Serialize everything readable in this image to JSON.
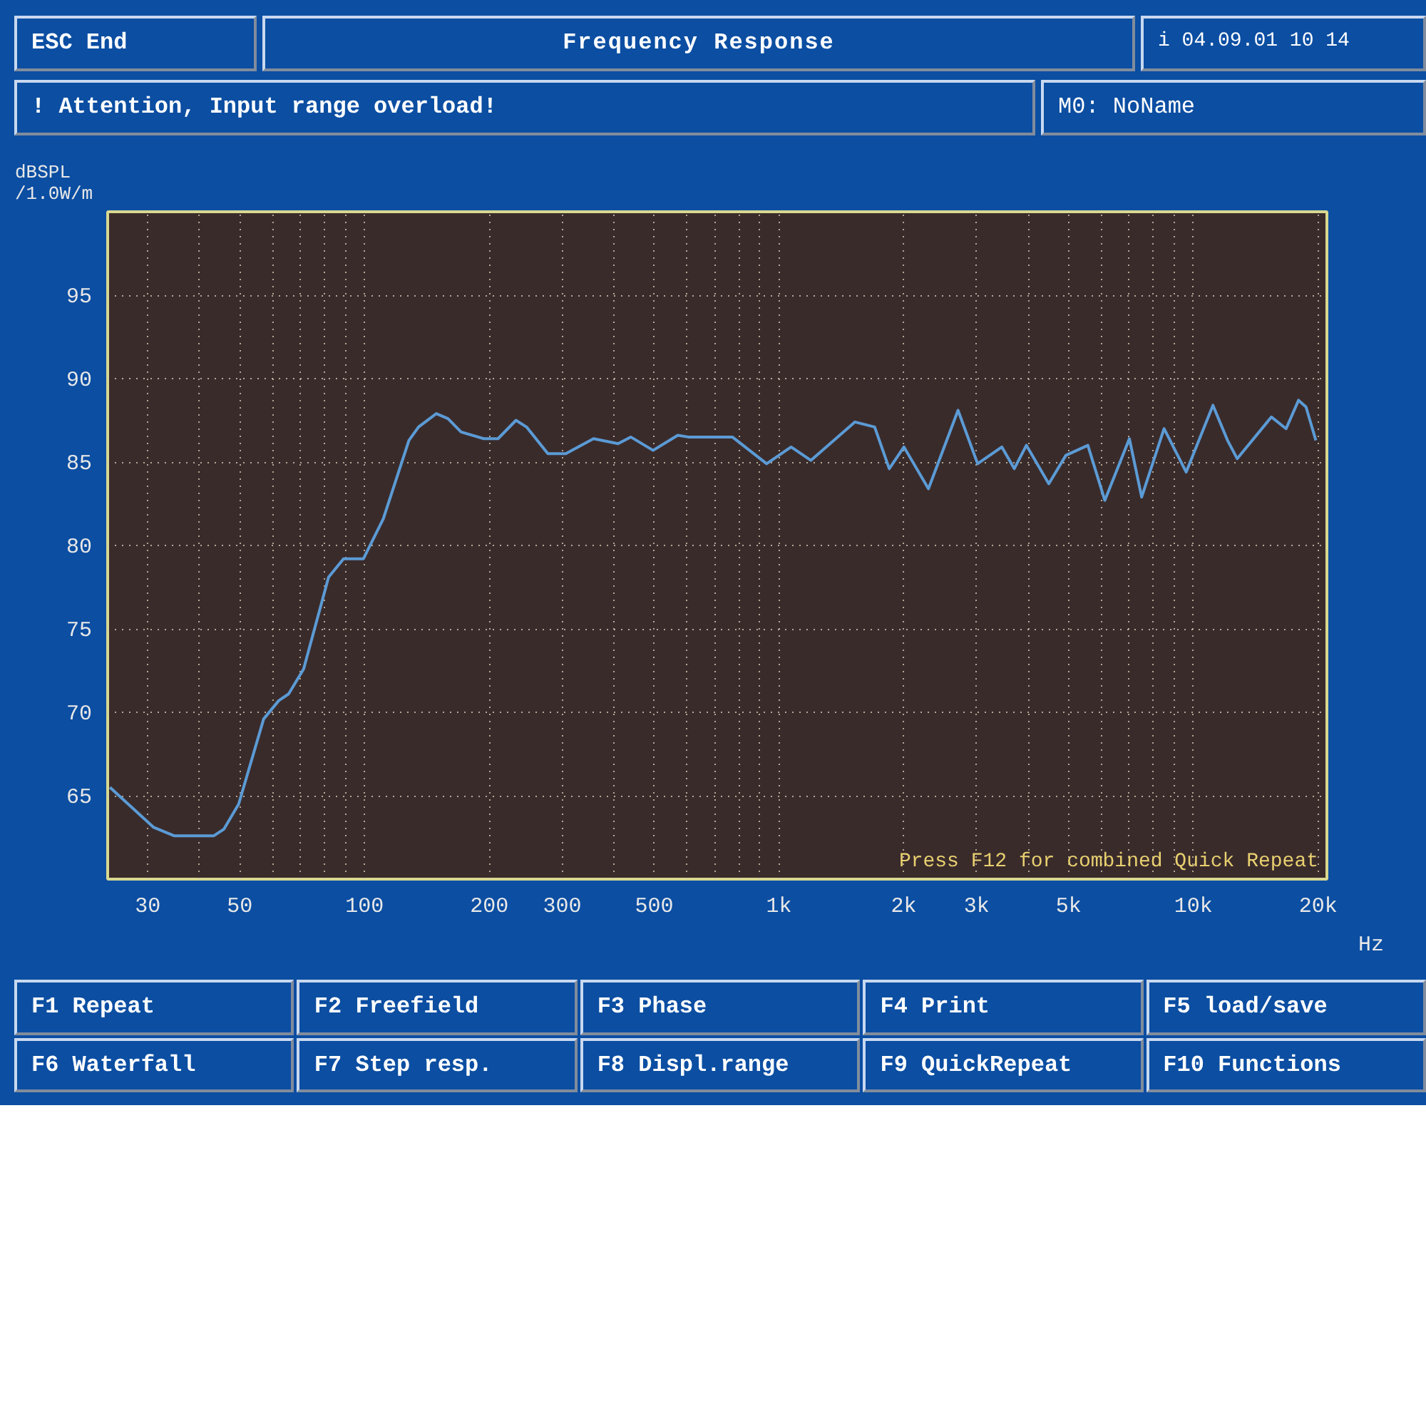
{
  "chart_data": {
    "type": "line",
    "title": "Frequency Response",
    "ylabel": "dBSPL\n/1.0W/m",
    "log": "x",
    "grid": true,
    "line_style": "solid",
    "xlim": [
      24,
      21000
    ],
    "ylim": [
      60,
      100
    ],
    "xticks": [
      {
        "value": 30,
        "label": "30"
      },
      {
        "value": 40,
        "label": null
      },
      {
        "value": 50,
        "label": "50"
      },
      {
        "value": 60,
        "label": null
      },
      {
        "value": 70,
        "label": null
      },
      {
        "value": 80,
        "label": null
      },
      {
        "value": 90,
        "label": null
      },
      {
        "value": 100,
        "label": "100"
      },
      {
        "value": 200,
        "label": "200"
      },
      {
        "value": 300,
        "label": "300"
      },
      {
        "value": 400,
        "label": null
      },
      {
        "value": 500,
        "label": "500"
      },
      {
        "value": 600,
        "label": null
      },
      {
        "value": 700,
        "label": null
      },
      {
        "value": 800,
        "label": null
      },
      {
        "value": 900,
        "label": null
      },
      {
        "value": 1000,
        "label": "1k"
      },
      {
        "value": 2000,
        "label": "2k"
      },
      {
        "value": 3000,
        "label": "3k"
      },
      {
        "value": 4000,
        "label": null
      },
      {
        "value": 5000,
        "label": "5k"
      },
      {
        "value": 6000,
        "label": null
      },
      {
        "value": 7000,
        "label": null
      },
      {
        "value": 8000,
        "label": null
      },
      {
        "value": 9000,
        "label": null
      },
      {
        "value": 10000,
        "label": "10k"
      },
      {
        "value": 20000,
        "label": "20k"
      }
    ],
    "xlabel": "Hz",
    "yticks": [
      65,
      70,
      75,
      80,
      85,
      90,
      95
    ],
    "annotations": [
      "ESC End",
      "i 04.09.01 10 14",
      "! Attention, Input range overload!",
      "M0: NoName",
      "Press F12 for combined Quick Repeat",
      "F1 Repeat",
      "F2 Freefield",
      "F3 Phase",
      "F4 Print",
      "F5 load/save",
      "F6 Waterfall",
      "F7 Step resp.",
      "F8 Displ.range",
      "F9 QuickRepeat",
      "F10 Functions"
    ],
    "series": [
      {
        "color": "#5b9bd5",
        "x": [
          24.3,
          31,
          34.7,
          43.3,
          45.8,
          49.7,
          57.1,
          62.1,
          65.6,
          71.3,
          81.9,
          89,
          99.4,
          111,
          128,
          135,
          149,
          159,
          171,
          194,
          210,
          232,
          246,
          277,
          306,
          357,
          409,
          439,
          497,
          570,
          604,
          703,
          772,
          934,
          1070,
          1194,
          1526,
          1702,
          1846,
          2003,
          2295,
          2705,
          3016,
          3451,
          3697,
          3954,
          4479,
          4925,
          5565,
          6115,
          7009,
          7503,
          8499,
          9610,
          11150,
          12090,
          12760,
          15430,
          16740,
          17940,
          18700,
          19750
        ],
        "values": [
          65.5,
          63.1,
          62.6,
          62.6,
          63,
          64.5,
          69.6,
          70.7,
          71.1,
          72.6,
          78.1,
          79.2,
          79.2,
          81.6,
          86.3,
          87.1,
          87.9,
          87.6,
          86.8,
          86.4,
          86.4,
          87.5,
          87.1,
          85.5,
          85.5,
          86.4,
          86.1,
          86.5,
          85.7,
          86.6,
          86.5,
          86.5,
          86.5,
          84.9,
          85.9,
          85.1,
          87.4,
          87.1,
          84.6,
          85.9,
          83.4,
          88.1,
          84.9,
          85.9,
          84.6,
          86,
          83.7,
          85.4,
          86,
          82.7,
          86.4,
          82.9,
          87,
          84.4,
          88.4,
          86.3,
          85.2,
          87.7,
          87,
          88.7,
          88.3,
          86.3
        ]
      }
    ]
  }
}
